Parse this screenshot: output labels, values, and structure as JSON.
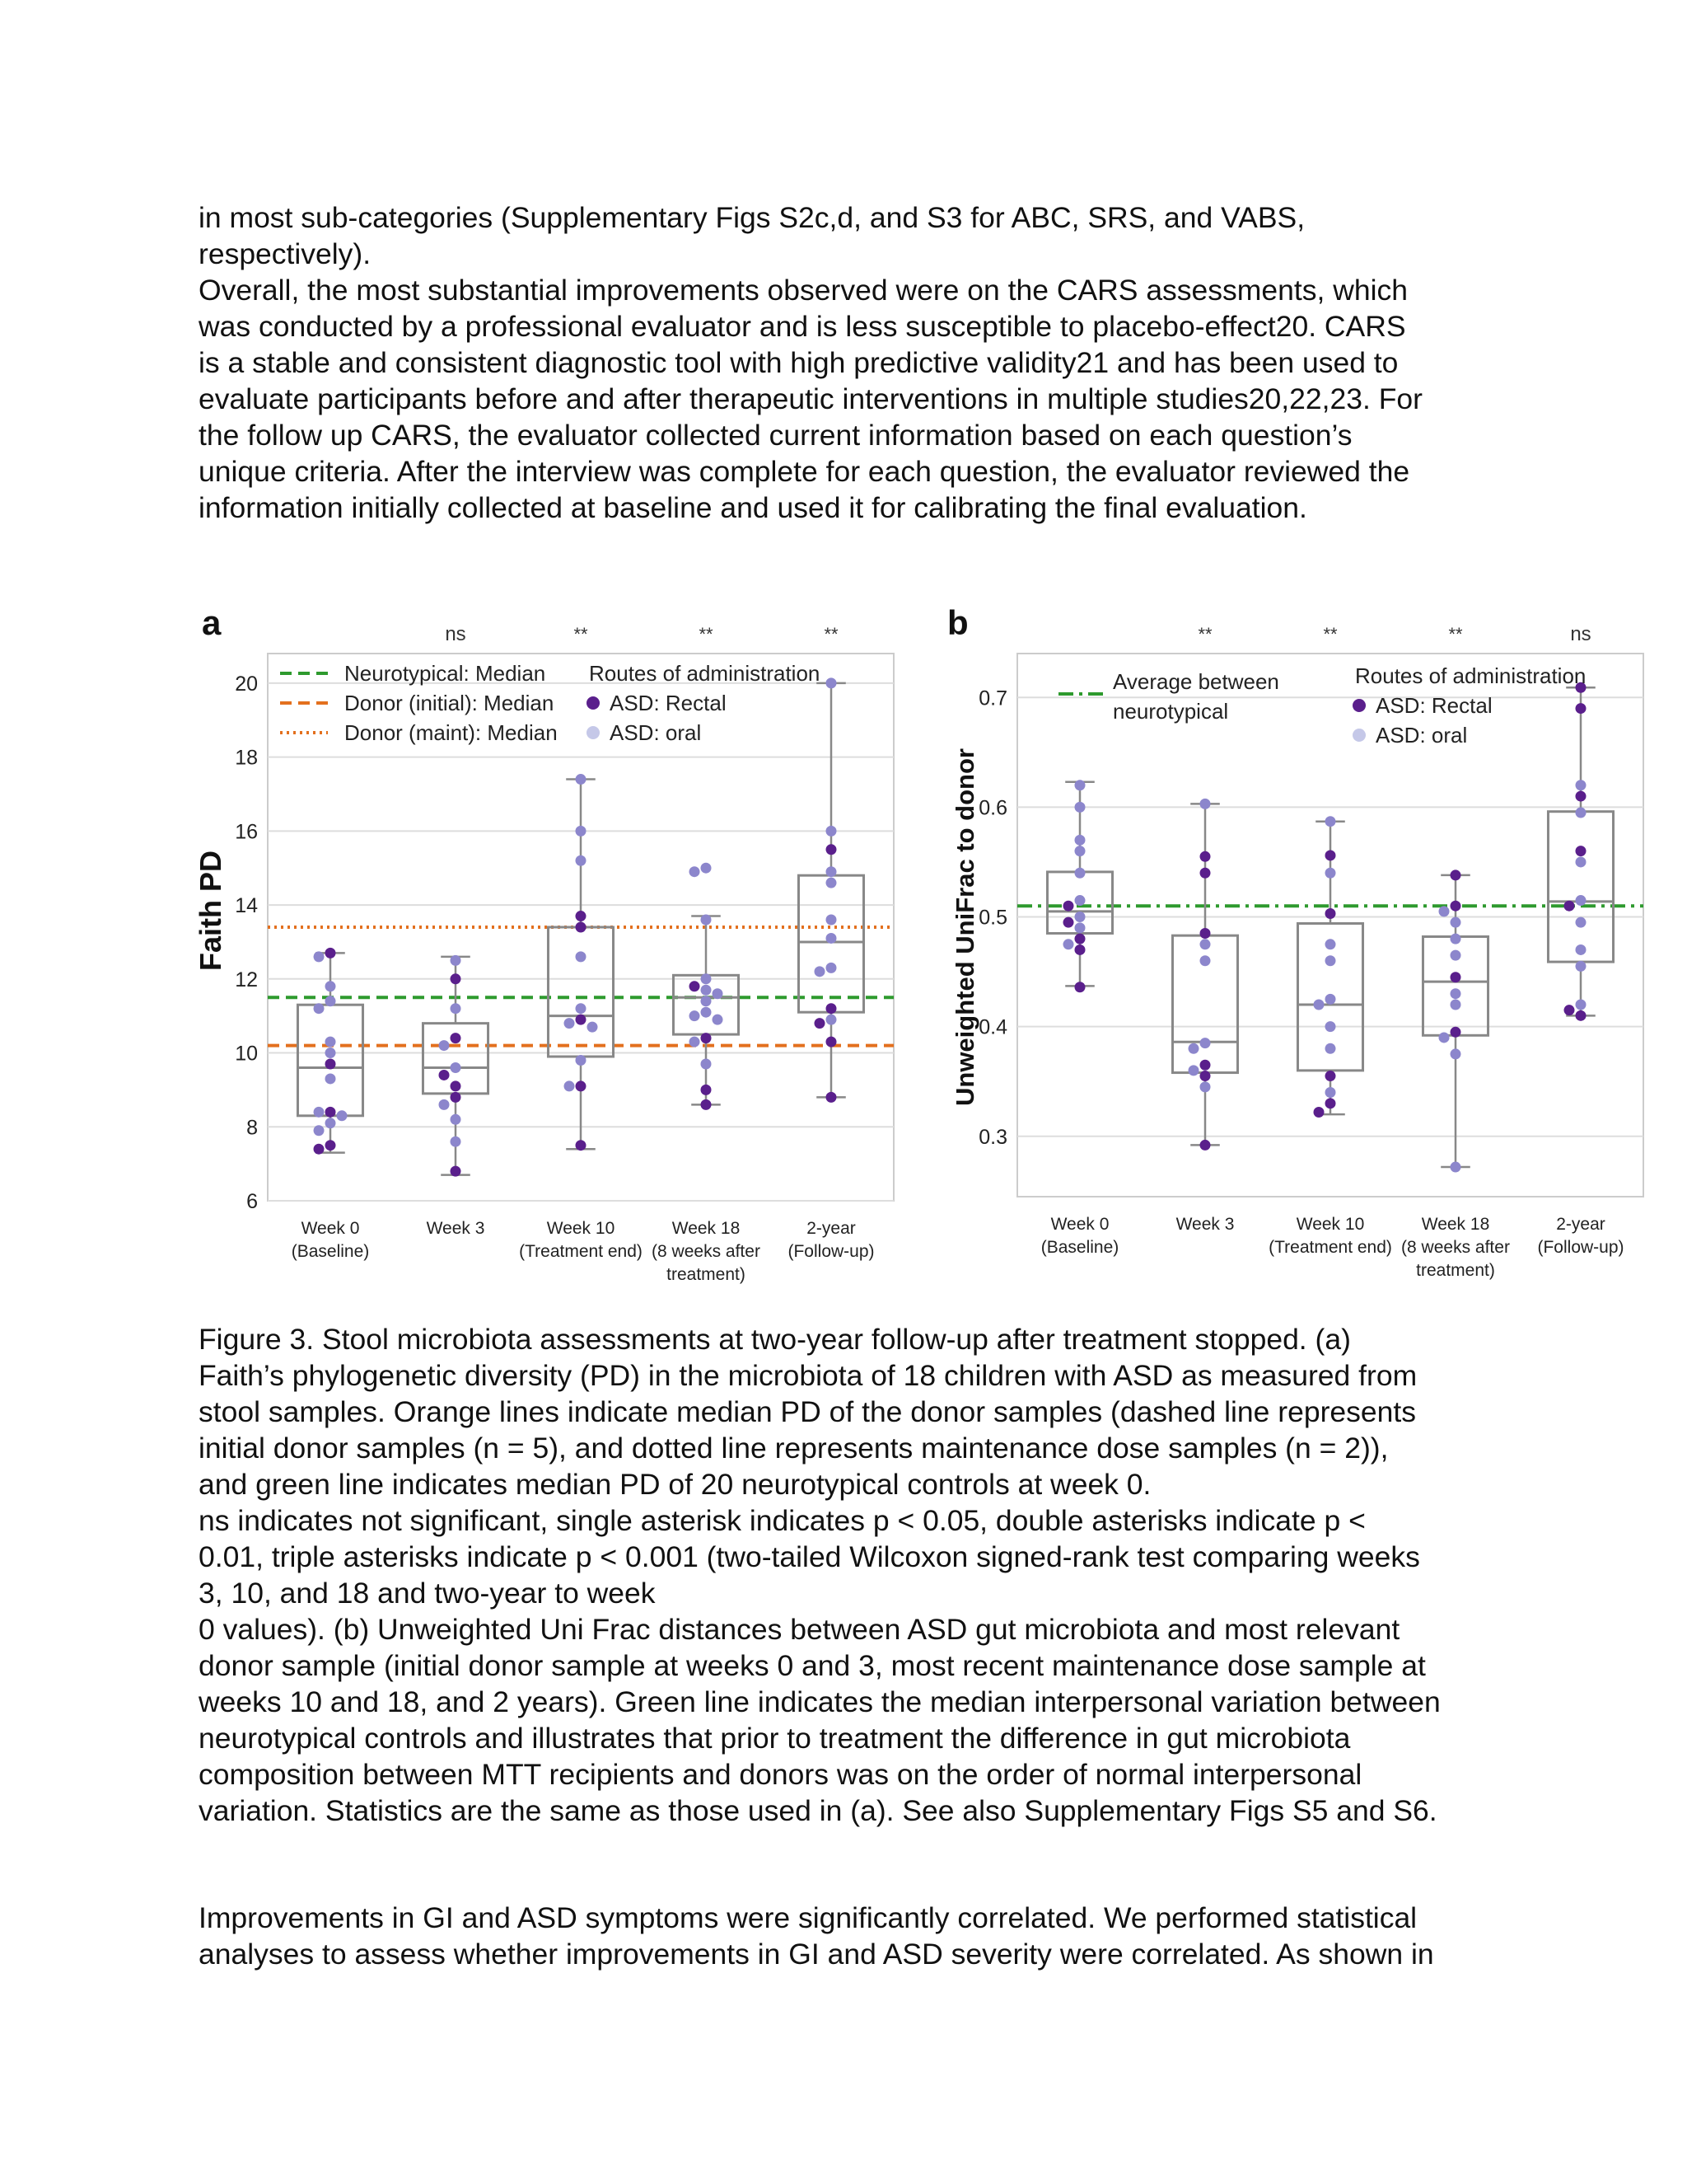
{
  "text_top": [
    "in most sub-categories (Supplementary Figs S2c,d, and S3 for ABC, SRS, and VABS,",
    "respectively).",
    "Overall, the most substantial improvements observed were on the CARS assessments, which",
    "was conducted by a professional evaluator and is less susceptible to placebo-effect20. CARS",
    "is a stable and consistent diagnostic tool with high predictive validity21 and has been used to",
    "evaluate participants before and after therapeutic interventions in multiple studies20,22,23. For",
    "the follow up CARS, the evaluator collected current information based on each question’s",
    "unique criteria. After the interview was complete for each question, the evaluator reviewed the",
    "information initially collected at baseline and used it for calibrating the final evaluation."
  ],
  "caption": [
    " Figure 3. Stool microbiota assessments at two-year follow-up after treatment stopped. (a)",
    "Faith’s phylogenetic diversity (PD) in the microbiota of 18 children with ASD as measured from",
    "stool samples. Orange lines indicate median PD of the donor samples (dashed line represents",
    "initial donor samples (n = 5), and dotted line represents maintenance dose samples (n = 2)),",
    "and green line indicates median PD of 20 neurotypical controls at week 0.",
    "ns indicates not significant, single asterisk indicates p < 0.05, double asterisks indicate p <",
    "0.01, triple asterisks indicate p < 0.001 (two-tailed Wilcoxon signed-rank test comparing weeks",
    "3, 10, and 18 and two-year to week",
    "0 values). (b) Unweighted Uni Frac distances between ASD gut microbiota and most relevant",
    "donor sample (initial donor sample at weeks 0 and 3, most recent maintenance dose sample at",
    "weeks 10 and 18, and 2 years). Green line indicates the median interpersonal variation between",
    "neurotypical controls and illustrates that prior to treatment the difference in gut microbiota",
    "composition between MTT recipients and donors was on the order of normal interpersonal",
    "variation. Statistics are the same as those used in (a). See also Supplementary Figs S5 and S6."
  ],
  "text_bottom": [
    "Improvements in GI and ASD symptoms were significantly correlated. We performed statistical",
    "analyses to assess whether improvements in GI and ASD severity were correlated. As shown in"
  ],
  "colors": {
    "rectal": "#5a1f8c",
    "oral": "#8c86cc",
    "box": "#888888",
    "green": "#2e9a2e",
    "orange": "#e3701e",
    "grid": "#dddddd"
  },
  "chart_data": [
    {
      "panel": "a",
      "type": "box",
      "ylabel": "Faith PD",
      "ylim": [
        6,
        20.8
      ],
      "yticks": [
        6,
        8,
        10,
        12,
        14,
        16,
        18,
        20
      ],
      "grid": true,
      "categories": [
        [
          "Week 0",
          "(Baseline)"
        ],
        [
          "Week 3"
        ],
        [
          "Week 10",
          "(Treatment end)"
        ],
        [
          "Week 18",
          "(8 weeks after",
          "treatment)"
        ],
        [
          "2-year",
          "(Follow-up)"
        ]
      ],
      "significance": [
        "",
        "ns",
        "**",
        "**",
        "**"
      ],
      "reference_lines": [
        {
          "label": "Neurotypical: Median",
          "value": 11.5,
          "color": "green",
          "style": "dashed"
        },
        {
          "label": "Donor (initial): Median",
          "value": 10.2,
          "color": "orange",
          "style": "dashed"
        },
        {
          "label": "Donor (maint): Median",
          "value": 13.4,
          "color": "orange",
          "style": "dotted"
        }
      ],
      "legend_title": "Routes of administration",
      "legend": [
        "ASD: Rectal",
        "ASD: oral"
      ],
      "boxes": [
        {
          "whislo": 7.3,
          "q1": 8.3,
          "med": 9.6,
          "q3": 11.3,
          "whishi": 12.7
        },
        {
          "whislo": 6.7,
          "q1": 8.9,
          "med": 9.6,
          "q3": 10.8,
          "whishi": 12.6
        },
        {
          "whislo": 7.4,
          "q1": 9.9,
          "med": 11.0,
          "q3": 13.4,
          "whishi": 17.4
        },
        {
          "whislo": 8.6,
          "q1": 10.5,
          "med": 11.5,
          "q3": 12.1,
          "whishi": 13.7
        },
        {
          "whislo": 8.8,
          "q1": 11.1,
          "med": 13.0,
          "q3": 14.8,
          "whishi": 20.0
        }
      ],
      "points": [
        [
          [
            12.7,
            "r"
          ],
          [
            12.6,
            "o"
          ],
          [
            11.8,
            "o"
          ],
          [
            11.4,
            "o"
          ],
          [
            11.2,
            "o"
          ],
          [
            10.3,
            "o"
          ],
          [
            10.0,
            "o"
          ],
          [
            9.7,
            "r"
          ],
          [
            9.3,
            "o"
          ],
          [
            8.4,
            "r"
          ],
          [
            8.4,
            "o"
          ],
          [
            8.3,
            "o"
          ],
          [
            8.1,
            "o"
          ],
          [
            7.9,
            "o"
          ],
          [
            7.5,
            "r"
          ],
          [
            7.4,
            "r"
          ]
        ],
        [
          [
            12.5,
            "o"
          ],
          [
            12.0,
            "r"
          ],
          [
            11.2,
            "o"
          ],
          [
            10.4,
            "r"
          ],
          [
            10.2,
            "o"
          ],
          [
            9.6,
            "o"
          ],
          [
            9.4,
            "r"
          ],
          [
            9.1,
            "r"
          ],
          [
            8.8,
            "r"
          ],
          [
            8.6,
            "o"
          ],
          [
            8.2,
            "o"
          ],
          [
            7.6,
            "o"
          ],
          [
            6.8,
            "r"
          ]
        ],
        [
          [
            17.4,
            "o"
          ],
          [
            16.0,
            "o"
          ],
          [
            15.2,
            "o"
          ],
          [
            13.7,
            "r"
          ],
          [
            13.4,
            "r"
          ],
          [
            12.6,
            "o"
          ],
          [
            11.2,
            "o"
          ],
          [
            10.9,
            "r"
          ],
          [
            10.8,
            "o"
          ],
          [
            10.7,
            "o"
          ],
          [
            9.8,
            "o"
          ],
          [
            9.1,
            "r"
          ],
          [
            9.1,
            "o"
          ],
          [
            7.5,
            "r"
          ]
        ],
        [
          [
            15.0,
            "o"
          ],
          [
            14.9,
            "o"
          ],
          [
            13.6,
            "o"
          ],
          [
            12.0,
            "o"
          ],
          [
            11.8,
            "r"
          ],
          [
            11.7,
            "o"
          ],
          [
            11.6,
            "o"
          ],
          [
            11.4,
            "o"
          ],
          [
            11.1,
            "o"
          ],
          [
            11.0,
            "o"
          ],
          [
            10.9,
            "o"
          ],
          [
            10.4,
            "r"
          ],
          [
            10.3,
            "o"
          ],
          [
            9.7,
            "o"
          ],
          [
            9.0,
            "r"
          ],
          [
            8.6,
            "r"
          ]
        ],
        [
          [
            20.0,
            "o"
          ],
          [
            16.0,
            "o"
          ],
          [
            15.5,
            "r"
          ],
          [
            14.9,
            "o"
          ],
          [
            14.6,
            "o"
          ],
          [
            13.6,
            "o"
          ],
          [
            13.1,
            "o"
          ],
          [
            12.3,
            "o"
          ],
          [
            12.2,
            "o"
          ],
          [
            11.2,
            "r"
          ],
          [
            10.9,
            "o"
          ],
          [
            10.8,
            "r"
          ],
          [
            10.3,
            "r"
          ],
          [
            8.8,
            "r"
          ]
        ]
      ]
    },
    {
      "panel": "b",
      "type": "box",
      "ylabel": "Unweighted UniFrac to donor",
      "ylim": [
        0.245,
        0.74
      ],
      "yticks": [
        0.3,
        0.4,
        0.5,
        0.6,
        0.7
      ],
      "grid": true,
      "categories": [
        [
          "Week 0",
          "(Baseline)"
        ],
        [
          "Week 3"
        ],
        [
          "Week 10",
          "(Treatment end)"
        ],
        [
          "Week 18",
          "(8 weeks after",
          "treatment)"
        ],
        [
          "2-year",
          "(Follow-up)"
        ]
      ],
      "significance": [
        "",
        "**",
        "**",
        "**",
        "ns"
      ],
      "reference_lines": [
        {
          "label": "Average between neurotypical",
          "label_lines": [
            "Average between",
            "neurotypical"
          ],
          "value": 0.51,
          "color": "green",
          "style": "dashdot"
        }
      ],
      "legend_title": "Routes of administration",
      "legend": [
        "ASD: Rectal",
        "ASD: oral"
      ],
      "boxes": [
        {
          "whislo": 0.437,
          "q1": 0.485,
          "med": 0.505,
          "q3": 0.541,
          "whishi": 0.623
        },
        {
          "whislo": 0.292,
          "q1": 0.358,
          "med": 0.386,
          "q3": 0.483,
          "whishi": 0.603
        },
        {
          "whislo": 0.32,
          "q1": 0.36,
          "med": 0.42,
          "q3": 0.494,
          "whishi": 0.587
        },
        {
          "whislo": 0.272,
          "q1": 0.392,
          "med": 0.441,
          "q3": 0.482,
          "whishi": 0.538
        },
        {
          "whislo": 0.41,
          "q1": 0.459,
          "med": 0.514,
          "q3": 0.596,
          "whishi": 0.709
        }
      ],
      "points": [
        [
          [
            0.62,
            "o"
          ],
          [
            0.6,
            "o"
          ],
          [
            0.57,
            "o"
          ],
          [
            0.56,
            "o"
          ],
          [
            0.54,
            "o"
          ],
          [
            0.515,
            "o"
          ],
          [
            0.51,
            "r"
          ],
          [
            0.5,
            "o"
          ],
          [
            0.495,
            "r"
          ],
          [
            0.49,
            "o"
          ],
          [
            0.48,
            "r"
          ],
          [
            0.475,
            "o"
          ],
          [
            0.47,
            "r"
          ],
          [
            0.436,
            "r"
          ]
        ],
        [
          [
            0.603,
            "o"
          ],
          [
            0.555,
            "r"
          ],
          [
            0.54,
            "r"
          ],
          [
            0.485,
            "r"
          ],
          [
            0.475,
            "o"
          ],
          [
            0.46,
            "o"
          ],
          [
            0.385,
            "o"
          ],
          [
            0.38,
            "o"
          ],
          [
            0.365,
            "r"
          ],
          [
            0.36,
            "o"
          ],
          [
            0.355,
            "r"
          ],
          [
            0.345,
            "o"
          ],
          [
            0.292,
            "r"
          ]
        ],
        [
          [
            0.587,
            "o"
          ],
          [
            0.556,
            "r"
          ],
          [
            0.54,
            "o"
          ],
          [
            0.503,
            "r"
          ],
          [
            0.475,
            "o"
          ],
          [
            0.46,
            "o"
          ],
          [
            0.425,
            "o"
          ],
          [
            0.42,
            "o"
          ],
          [
            0.4,
            "o"
          ],
          [
            0.38,
            "o"
          ],
          [
            0.355,
            "r"
          ],
          [
            0.34,
            "o"
          ],
          [
            0.33,
            "r"
          ],
          [
            0.322,
            "r"
          ]
        ],
        [
          [
            0.538,
            "r"
          ],
          [
            0.51,
            "r"
          ],
          [
            0.505,
            "o"
          ],
          [
            0.495,
            "o"
          ],
          [
            0.48,
            "o"
          ],
          [
            0.465,
            "o"
          ],
          [
            0.445,
            "r"
          ],
          [
            0.43,
            "o"
          ],
          [
            0.42,
            "o"
          ],
          [
            0.395,
            "r"
          ],
          [
            0.39,
            "o"
          ],
          [
            0.375,
            "o"
          ],
          [
            0.272,
            "o"
          ]
        ],
        [
          [
            0.709,
            "r"
          ],
          [
            0.69,
            "r"
          ],
          [
            0.62,
            "o"
          ],
          [
            0.61,
            "r"
          ],
          [
            0.595,
            "o"
          ],
          [
            0.56,
            "r"
          ],
          [
            0.55,
            "o"
          ],
          [
            0.515,
            "o"
          ],
          [
            0.51,
            "r"
          ],
          [
            0.495,
            "o"
          ],
          [
            0.47,
            "o"
          ],
          [
            0.455,
            "o"
          ],
          [
            0.42,
            "o"
          ],
          [
            0.415,
            "r"
          ],
          [
            0.41,
            "r"
          ]
        ]
      ]
    }
  ]
}
